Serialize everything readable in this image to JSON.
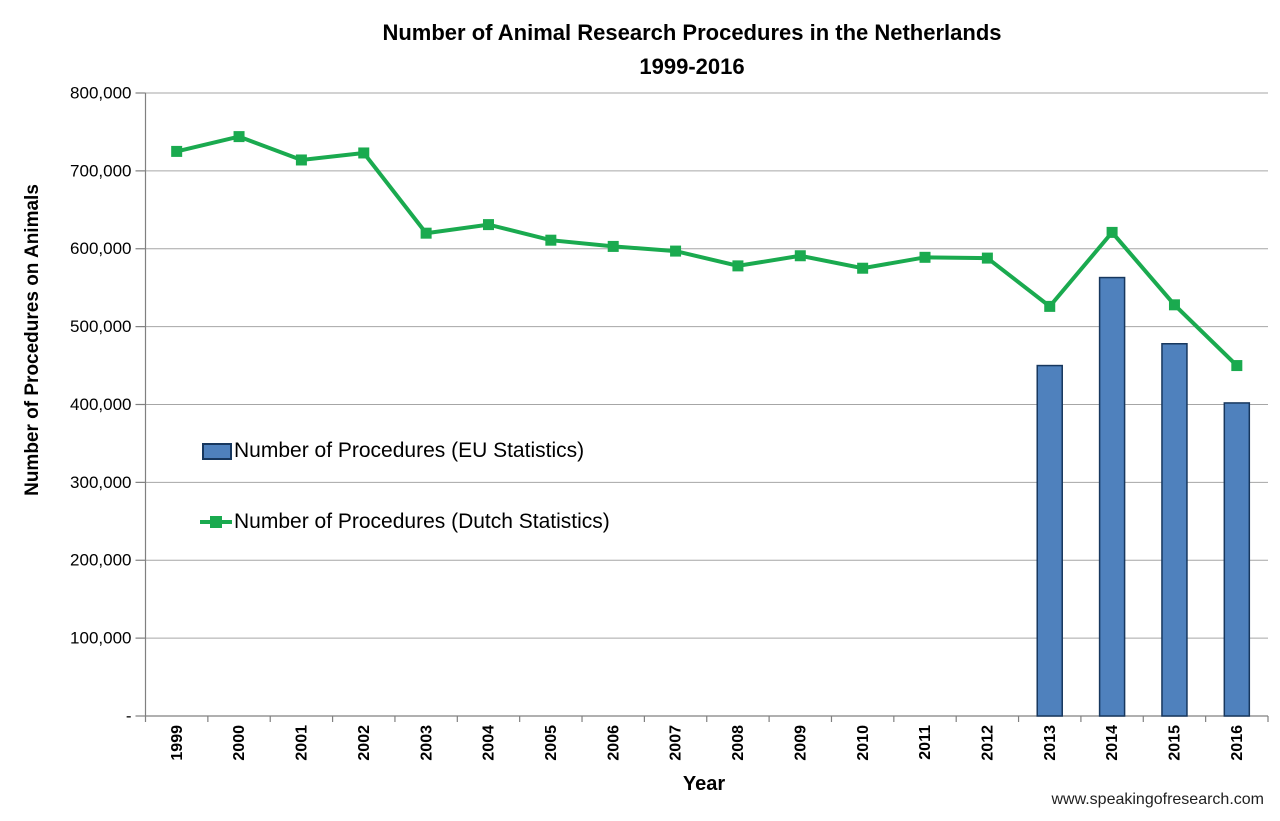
{
  "chart_data": {
    "type": "combo",
    "title": "Number of Animal Research Procedures in the Netherlands",
    "subtitle": "1999-2016",
    "xlabel": "Year",
    "ylabel": "Number of Procedures on Animals",
    "footer": "www.speakingofresearch.com",
    "categories": [
      "1999",
      "2000",
      "2001",
      "2002",
      "2003",
      "2004",
      "2005",
      "2006",
      "2007",
      "2008",
      "2009",
      "2010",
      "2011",
      "2012",
      "2013",
      "2014",
      "2015",
      "2016"
    ],
    "series": [
      {
        "name": "Number of Procedures (EU Statistics)",
        "type": "bar",
        "color": "#4F81BD",
        "border_color": "#17375E",
        "values": [
          null,
          null,
          null,
          null,
          null,
          null,
          null,
          null,
          null,
          null,
          null,
          null,
          null,
          null,
          450000,
          563000,
          478000,
          402000
        ]
      },
      {
        "name": "Number of Procedures (Dutch Statistics)",
        "type": "line",
        "color": "#1AAA4F",
        "marker": "square",
        "values": [
          725000,
          744000,
          714000,
          723000,
          620000,
          631000,
          611000,
          603000,
          597000,
          578000,
          591000,
          575000,
          589000,
          588000,
          526000,
          621000,
          528000,
          450000
        ]
      }
    ],
    "ylim": [
      0,
      800000
    ],
    "ytick_step": 100000,
    "ytick_labels": [
      "-",
      "100,000",
      "200,000",
      "300,000",
      "400,000",
      "500,000",
      "600,000",
      "700,000",
      "800,000"
    ],
    "grid": true,
    "legend_position": "inside-left",
    "colors": {
      "grid": "#A6A6A6",
      "axis": "#808080",
      "text": "#000000"
    }
  }
}
